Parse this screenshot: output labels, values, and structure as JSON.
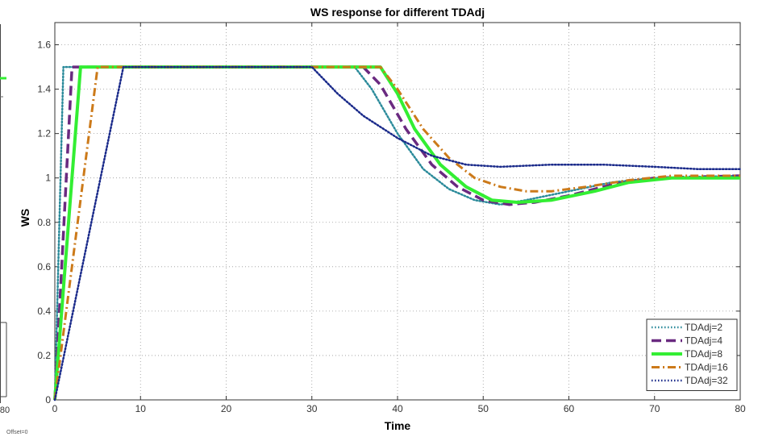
{
  "window": {
    "offset_text": "Offset=0"
  },
  "left_panel": {
    "tick_label": "80"
  },
  "chart_data": {
    "type": "line",
    "title": "WS response for different TDAdj",
    "xlabel": "Time",
    "ylabel": "WS",
    "xlim": [
      0,
      80
    ],
    "ylim": [
      0,
      1.7
    ],
    "xticks": [
      0,
      10,
      20,
      30,
      40,
      50,
      60,
      70,
      80
    ],
    "yticks": [
      0,
      0.2,
      0.4,
      0.6,
      0.8,
      1,
      1.2,
      1.4,
      1.6
    ],
    "grid": true,
    "legend_position": "bottom-right",
    "series": [
      {
        "name": "TDAdj=2",
        "color": "#2a8a9a",
        "style": "dotted",
        "x": [
          0,
          1,
          35,
          37,
          40,
          43,
          46,
          49,
          52,
          55,
          60,
          65,
          70,
          80
        ],
        "y": [
          0,
          1.5,
          1.5,
          1.4,
          1.2,
          1.04,
          0.95,
          0.9,
          0.88,
          0.9,
          0.94,
          0.98,
          1.0,
          1.01
        ]
      },
      {
        "name": "TDAdj=4",
        "color": "#6a2a80",
        "style": "dashed",
        "x": [
          0,
          2,
          36,
          38,
          41,
          44,
          47,
          50,
          53,
          56,
          60,
          65,
          70,
          80
        ],
        "y": [
          0,
          1.5,
          1.5,
          1.42,
          1.22,
          1.06,
          0.96,
          0.9,
          0.88,
          0.89,
          0.92,
          0.97,
          1.0,
          1.01
        ]
      },
      {
        "name": "TDAdj=8",
        "color": "#33ee33",
        "style": "solid",
        "x": [
          0,
          3,
          38,
          40,
          42,
          45,
          48,
          51,
          54,
          58,
          63,
          67,
          72,
          80
        ],
        "y": [
          0,
          1.5,
          1.5,
          1.38,
          1.22,
          1.06,
          0.96,
          0.9,
          0.89,
          0.9,
          0.94,
          0.98,
          1.0,
          1.0
        ]
      },
      {
        "name": "TDAdj=16",
        "color": "#cc7a1a",
        "style": "dashdot",
        "x": [
          0,
          5,
          38,
          40,
          43,
          46,
          49,
          52,
          55,
          58,
          62,
          67,
          72,
          80
        ],
        "y": [
          0,
          1.5,
          1.5,
          1.4,
          1.22,
          1.09,
          1.0,
          0.96,
          0.94,
          0.94,
          0.96,
          0.99,
          1.01,
          1.01
        ]
      },
      {
        "name": "TDAdj=32",
        "color": "#1a2a8a",
        "style": "dotted",
        "x": [
          0,
          8,
          30,
          33,
          36,
          40,
          44,
          48,
          52,
          58,
          64,
          70,
          75,
          80
        ],
        "y": [
          0,
          1.5,
          1.5,
          1.38,
          1.28,
          1.18,
          1.1,
          1.06,
          1.05,
          1.06,
          1.06,
          1.05,
          1.04,
          1.04
        ]
      }
    ]
  }
}
